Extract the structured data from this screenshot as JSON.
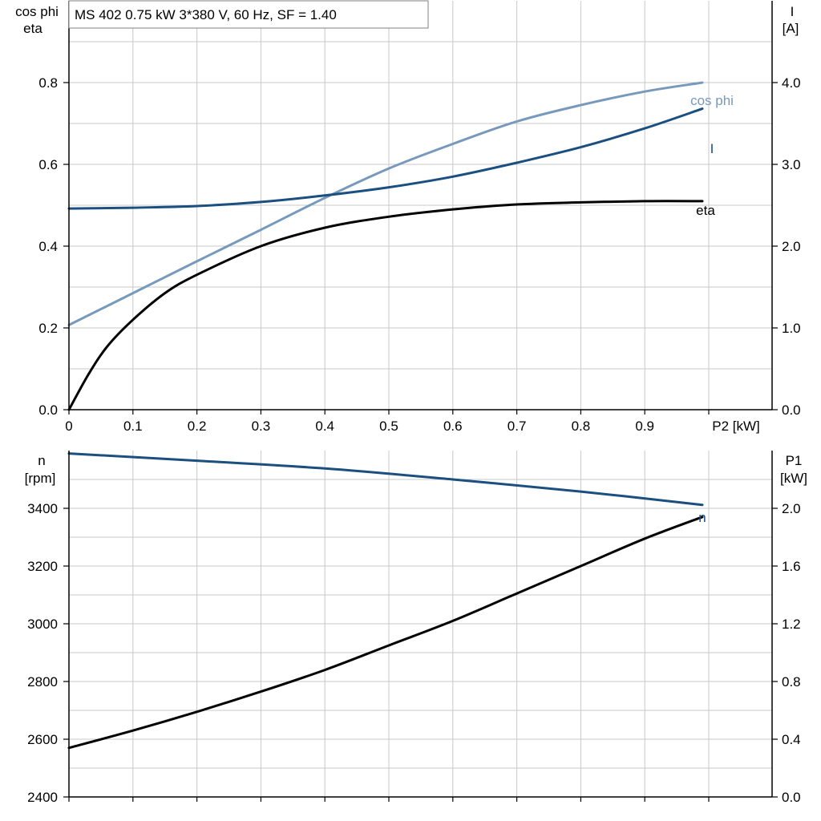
{
  "header": {
    "title": "MS 402   0.75 kW   3*380 V, 60 Hz, SF = 1.40"
  },
  "colors": {
    "cos_phi": "#7799bb",
    "current": "#1a4f80",
    "eta": "#000000",
    "n": "#1a4f80",
    "p1": "#000000"
  },
  "chart_data": [
    {
      "type": "line",
      "x_unit_label": "P2 [kW]",
      "xlim": [
        0,
        1.1
      ],
      "x_ticks": [
        "0",
        "0.1",
        "0.2",
        "0.3",
        "0.4",
        "0.5",
        "0.6",
        "0.7",
        "0.8",
        "0.9"
      ],
      "left_axis": {
        "label_lines": [
          "cos phi",
          "eta"
        ],
        "ylim": [
          0,
          1.0
        ],
        "ticks": [
          "0.0",
          "0.2",
          "0.4",
          "0.6",
          "0.8"
        ]
      },
      "right_axis": {
        "label_lines": [
          "I",
          "[A]"
        ],
        "ylim": [
          0,
          5.0
        ],
        "ticks": [
          "0.0",
          "1.0",
          "2.0",
          "3.0",
          "4.0"
        ]
      },
      "grid": true,
      "series": [
        {
          "name": "cos phi",
          "axis": "left",
          "x": [
            0,
            0.1,
            0.2,
            0.3,
            0.4,
            0.5,
            0.6,
            0.7,
            0.8,
            0.9,
            0.99
          ],
          "y": [
            0.207,
            0.285,
            0.363,
            0.44,
            0.518,
            0.59,
            0.65,
            0.705,
            0.745,
            0.778,
            0.8
          ]
        },
        {
          "name": "I",
          "axis": "right",
          "x": [
            0,
            0.1,
            0.2,
            0.3,
            0.4,
            0.5,
            0.6,
            0.7,
            0.8,
            0.9,
            0.99
          ],
          "y": [
            2.46,
            2.47,
            2.49,
            2.54,
            2.62,
            2.72,
            2.85,
            3.02,
            3.21,
            3.44,
            3.68
          ]
        },
        {
          "name": "eta",
          "axis": "left",
          "x": [
            0,
            0.03,
            0.06,
            0.1,
            0.15,
            0.2,
            0.3,
            0.4,
            0.5,
            0.6,
            0.7,
            0.8,
            0.9,
            0.99
          ],
          "y": [
            0.0,
            0.085,
            0.155,
            0.22,
            0.285,
            0.33,
            0.4,
            0.445,
            0.472,
            0.49,
            0.502,
            0.507,
            0.51,
            0.51
          ]
        }
      ]
    },
    {
      "type": "line",
      "xlim": [
        0,
        1.1
      ],
      "left_axis": {
        "label_lines": [
          "n",
          "[rpm]"
        ],
        "ylim": [
          2400,
          3600
        ],
        "ticks": [
          "2400",
          "2600",
          "2800",
          "3000",
          "3200",
          "3400"
        ]
      },
      "right_axis": {
        "label_lines": [
          "P1",
          "[kW]"
        ],
        "ylim": [
          0,
          2.4
        ],
        "ticks": [
          "0.0",
          "0.4",
          "0.8",
          "1.2",
          "1.6",
          "2.0"
        ]
      },
      "grid": true,
      "series": [
        {
          "name": "n",
          "axis": "left",
          "x": [
            0,
            0.2,
            0.4,
            0.6,
            0.8,
            0.99
          ],
          "y": [
            3590,
            3565,
            3538,
            3500,
            3458,
            3412
          ]
        },
        {
          "name": "",
          "axis": "right",
          "x": [
            0,
            0.1,
            0.2,
            0.3,
            0.4,
            0.5,
            0.6,
            0.7,
            0.8,
            0.9,
            0.99
          ],
          "y": [
            0.34,
            0.46,
            0.59,
            0.73,
            0.88,
            1.05,
            1.22,
            1.41,
            1.6,
            1.79,
            1.94
          ]
        }
      ]
    }
  ]
}
